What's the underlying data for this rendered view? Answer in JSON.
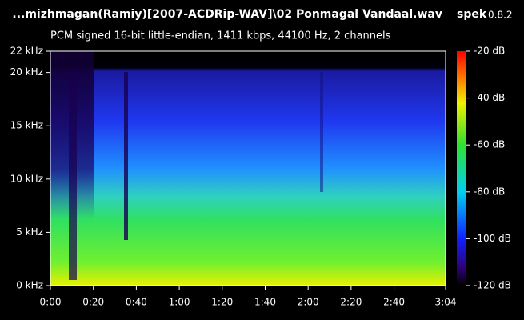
{
  "chart_data": {
    "type": "spectrogram",
    "title": "...mizhmagan(Ramiy)[2007-ACDRip-WAV]\\02 Ponmagal Vandaal.wav",
    "app_name": "spek",
    "app_version": "0.8.2",
    "subtitle": "PCM signed 16-bit little-endian, 1411 kbps, 44100 Hz, 2 channels",
    "xlim": [
      0,
      184
    ],
    "xticks": [
      {
        "value": 0,
        "label": "0:00"
      },
      {
        "value": 20,
        "label": "0:20"
      },
      {
        "value": 40,
        "label": "0:40"
      },
      {
        "value": 60,
        "label": "1:00"
      },
      {
        "value": 80,
        "label": "1:20"
      },
      {
        "value": 100,
        "label": "1:40"
      },
      {
        "value": 120,
        "label": "2:00"
      },
      {
        "value": 140,
        "label": "2:20"
      },
      {
        "value": 160,
        "label": "2:40"
      },
      {
        "value": 184,
        "label": "3:04"
      }
    ],
    "ylim": [
      0,
      22
    ],
    "yticks": [
      {
        "value": 0,
        "label": "0 kHz"
      },
      {
        "value": 5,
        "label": "5 kHz"
      },
      {
        "value": 10,
        "label": "10 kHz"
      },
      {
        "value": 15,
        "label": "15 kHz"
      },
      {
        "value": 20,
        "label": "20 kHz"
      },
      {
        "value": 22,
        "label": "22 kHz"
      }
    ],
    "colorbar": {
      "lim": [
        -120,
        -20
      ],
      "ticks": [
        {
          "value": -20,
          "label": "-20 dB"
        },
        {
          "value": -40,
          "label": "-40 dB"
        },
        {
          "value": -60,
          "label": "-60 dB"
        },
        {
          "value": -80,
          "label": "-80 dB"
        },
        {
          "value": -100,
          "label": "-100 dB"
        },
        {
          "value": -120,
          "label": "-120 dB"
        }
      ]
    }
  }
}
